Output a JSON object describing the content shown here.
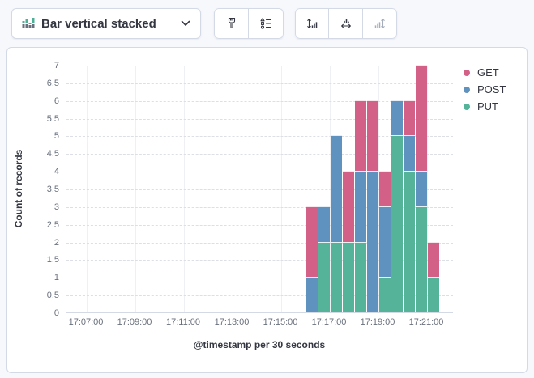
{
  "toolbar": {
    "chart_type_label": "Bar vertical stacked"
  },
  "colors": {
    "page_background": "#f7f8fc",
    "panel_border": "#d3dae6",
    "icon_dark": "#343741",
    "icon_gray": "#69707d",
    "icon_disabled": "#a6aebc",
    "icon_green": "#4daf94"
  },
  "chart_data": {
    "type": "bar",
    "stacked": true,
    "orientation": "vertical",
    "xlabel": "@timestamp per 30 seconds",
    "ylabel": "Count of records",
    "ylim": [
      0,
      7
    ],
    "grid": true,
    "legend_position": "right",
    "y_ticks": [
      "0",
      "0.5",
      "1",
      "1.5",
      "2",
      "2.5",
      "3",
      "3.5",
      "4",
      "4.5",
      "5",
      "5.5",
      "6",
      "6.5",
      "7"
    ],
    "x_axis_ticks": [
      "17:07:00",
      "17:09:00",
      "17:11:00",
      "17:13:00",
      "17:15:00",
      "17:17:00",
      "17:19:00",
      "17:21:00"
    ],
    "categories": [
      "17:16:00",
      "17:16:30",
      "17:17:00",
      "17:17:30",
      "17:18:00",
      "17:18:30",
      "17:19:00",
      "17:19:30",
      "17:20:00",
      "17:20:30",
      "17:21:00"
    ],
    "series": [
      {
        "name": "PUT",
        "color": "#54b399",
        "values": [
          0,
          2,
          2,
          2,
          2,
          0,
          1,
          5,
          4,
          3,
          1
        ]
      },
      {
        "name": "POST",
        "color": "#6092c0",
        "values": [
          1,
          1,
          3,
          0,
          2,
          4,
          2,
          1,
          1,
          1,
          0
        ]
      },
      {
        "name": "GET",
        "color": "#d36086",
        "values": [
          2,
          0,
          0,
          2,
          2,
          2,
          1,
          0,
          1,
          3,
          1
        ]
      }
    ],
    "legend": [
      {
        "label": "GET",
        "color": "#d36086"
      },
      {
        "label": "POST",
        "color": "#6092c0"
      },
      {
        "label": "PUT",
        "color": "#54b399"
      }
    ]
  }
}
